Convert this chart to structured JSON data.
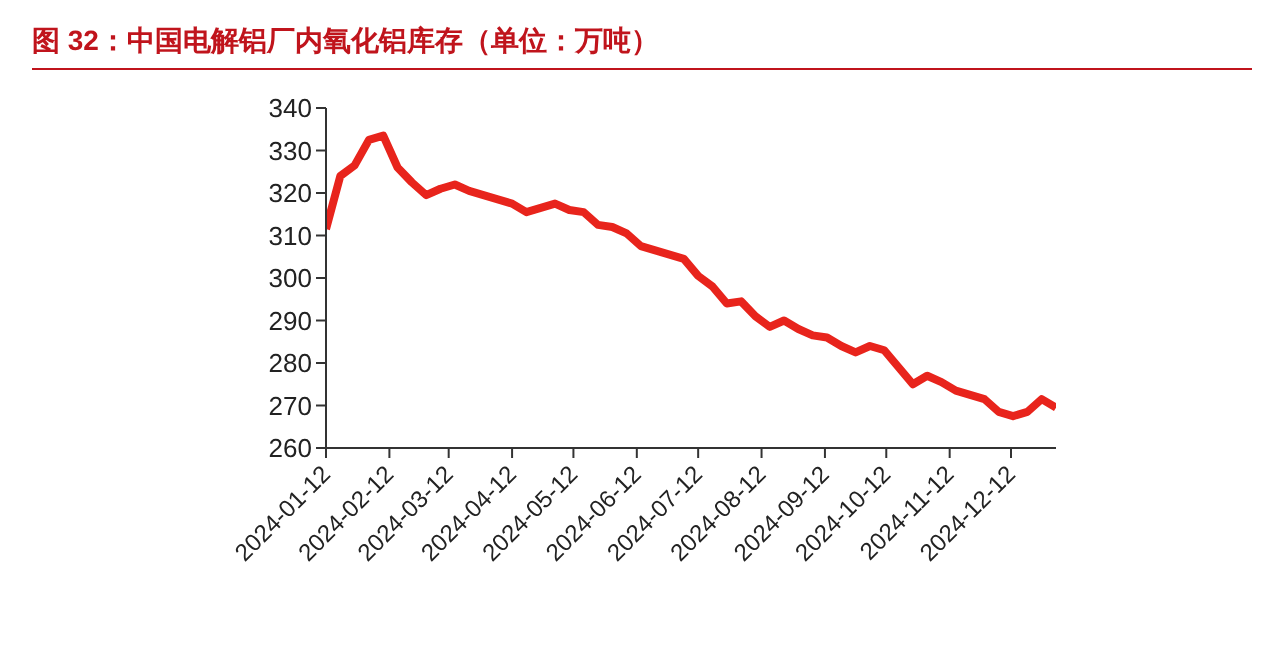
{
  "chart_data": {
    "type": "line",
    "title": "图 32：中国电解铝厂内氧化铝库存（单位：万吨）",
    "x": [
      "2024-01-12",
      "2024-01-19",
      "2024-01-26",
      "2024-02-02",
      "2024-02-09",
      "2024-02-16",
      "2024-02-23",
      "2024-03-01",
      "2024-03-08",
      "2024-03-15",
      "2024-03-22",
      "2024-03-29",
      "2024-04-05",
      "2024-04-12",
      "2024-04-19",
      "2024-04-26",
      "2024-05-03",
      "2024-05-10",
      "2024-05-17",
      "2024-05-24",
      "2024-05-31",
      "2024-06-07",
      "2024-06-14",
      "2024-06-21",
      "2024-06-28",
      "2024-07-05",
      "2024-07-12",
      "2024-07-19",
      "2024-07-26",
      "2024-08-02",
      "2024-08-09",
      "2024-08-16",
      "2024-08-23",
      "2024-08-30",
      "2024-09-06",
      "2024-09-13",
      "2024-09-20",
      "2024-09-27",
      "2024-10-04",
      "2024-10-11",
      "2024-10-18",
      "2024-10-25",
      "2024-11-01",
      "2024-11-08",
      "2024-11-15",
      "2024-11-22",
      "2024-11-29",
      "2024-12-06",
      "2024-12-13",
      "2024-12-20",
      "2024-12-27",
      "2025-01-03"
    ],
    "series": [
      {
        "color": "#e8241c",
        "values": [
          311.5,
          324,
          326.5,
          332.5,
          333.5,
          326,
          322.5,
          319.5,
          321,
          322,
          320.5,
          319.5,
          318.5,
          317.5,
          315.5,
          316.5,
          317.5,
          316,
          315.5,
          312.5,
          312,
          310.5,
          307.5,
          306.5,
          305.5,
          304.5,
          300.5,
          298,
          294,
          294.5,
          291,
          288.5,
          290,
          288,
          286.5,
          286,
          284,
          282.5,
          284,
          283,
          279,
          275,
          277,
          275.5,
          273.5,
          272.5,
          271.5,
          268.5,
          267.5,
          268.5,
          271.5,
          269.5
        ]
      }
    ],
    "xlim": [
      "2024-01-12",
      "2025-01-03"
    ],
    "xticks": [
      "2024-01-12",
      "2024-02-12",
      "2024-03-12",
      "2024-04-12",
      "2024-05-12",
      "2024-06-12",
      "2024-07-12",
      "2024-08-12",
      "2024-09-12",
      "2024-10-12",
      "2024-11-12",
      "2024-12-12"
    ],
    "ylim": [
      260,
      340
    ],
    "yticks": [
      260,
      270,
      280,
      290,
      300,
      310,
      320,
      330,
      340
    ],
    "grid": false,
    "legend": false,
    "marker": "none",
    "line_style": "solid"
  }
}
